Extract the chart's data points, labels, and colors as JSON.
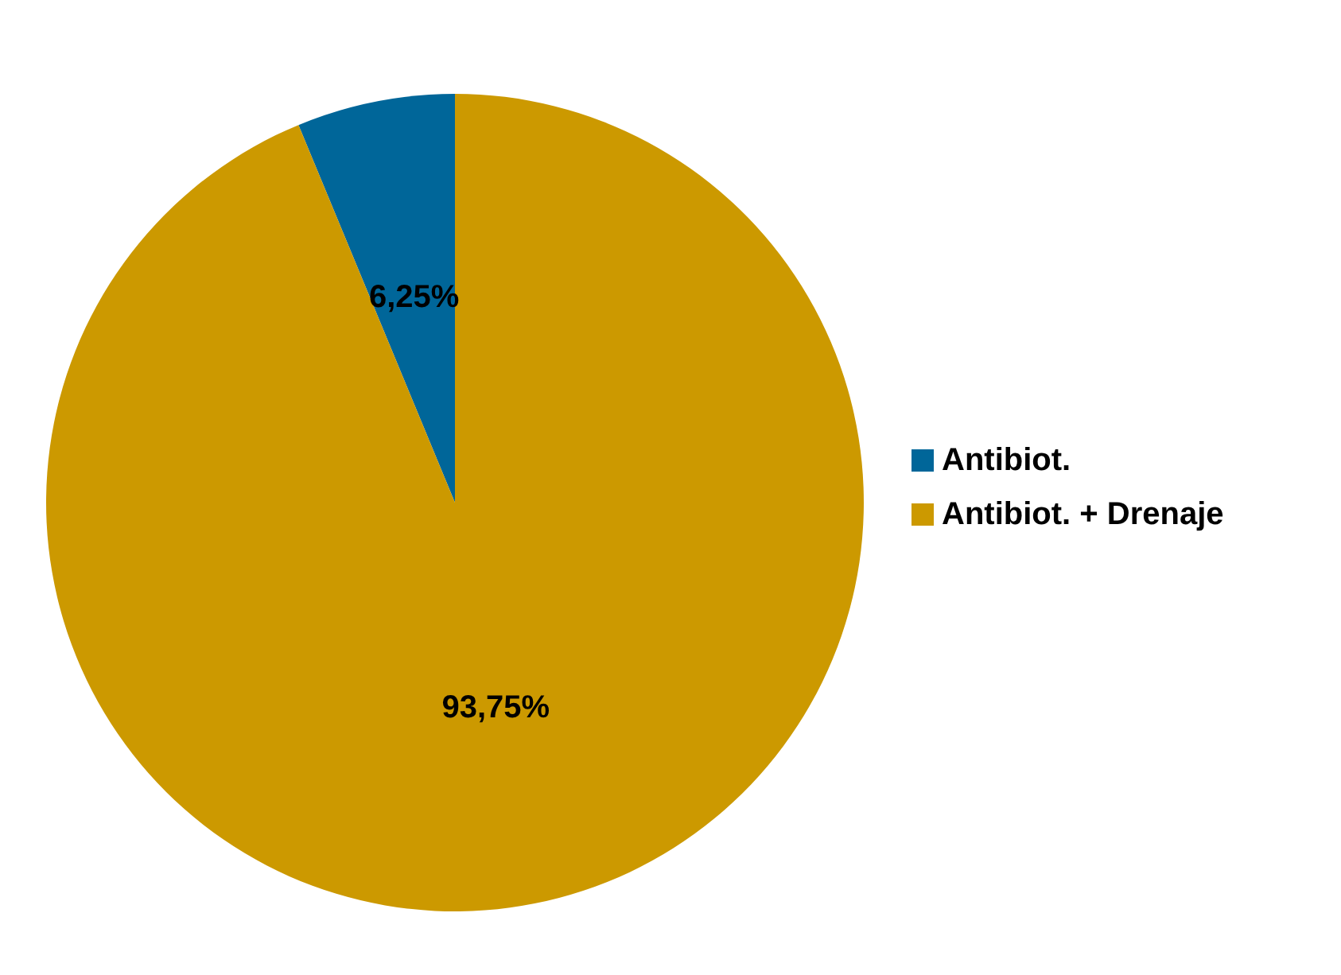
{
  "chart_data": {
    "type": "pie",
    "categories": [
      "Antibiot.",
      "Antibiot. + Drenaje"
    ],
    "values": [
      6.25,
      93.75
    ],
    "colors": [
      "#006699",
      "#cc9900"
    ],
    "value_labels": [
      "6,25%",
      "93,75%"
    ],
    "legend": "right"
  }
}
